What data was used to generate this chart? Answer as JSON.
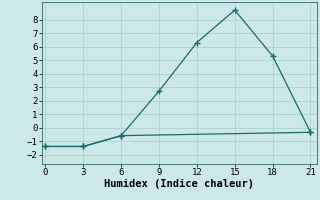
{
  "xlabel": "Humidex (Indice chaleur)",
  "background_color": "#cce8e8",
  "grid_color": "#b0d0d0",
  "line_color": "#1a6b6b",
  "series1_x": [
    0,
    3,
    6,
    9,
    12,
    15,
    18,
    21
  ],
  "series1_y": [
    -1.4,
    -1.4,
    -0.6,
    2.7,
    6.3,
    8.7,
    5.3,
    -0.35
  ],
  "series2_x": [
    0,
    3,
    6,
    21
  ],
  "series2_y": [
    -1.4,
    -1.4,
    -0.6,
    -0.35
  ],
  "xlim": [
    -0.3,
    21.5
  ],
  "ylim": [
    -2.7,
    9.3
  ],
  "xticks": [
    0,
    3,
    6,
    9,
    12,
    15,
    18,
    21
  ],
  "yticks": [
    -2,
    -1,
    0,
    1,
    2,
    3,
    4,
    5,
    6,
    7,
    8
  ],
  "marker": "+",
  "markersize": 5,
  "markeredgewidth": 1.0,
  "linewidth": 0.9,
  "font_family": "monospace",
  "tick_fontsize": 6.5,
  "xlabel_fontsize": 7.5
}
